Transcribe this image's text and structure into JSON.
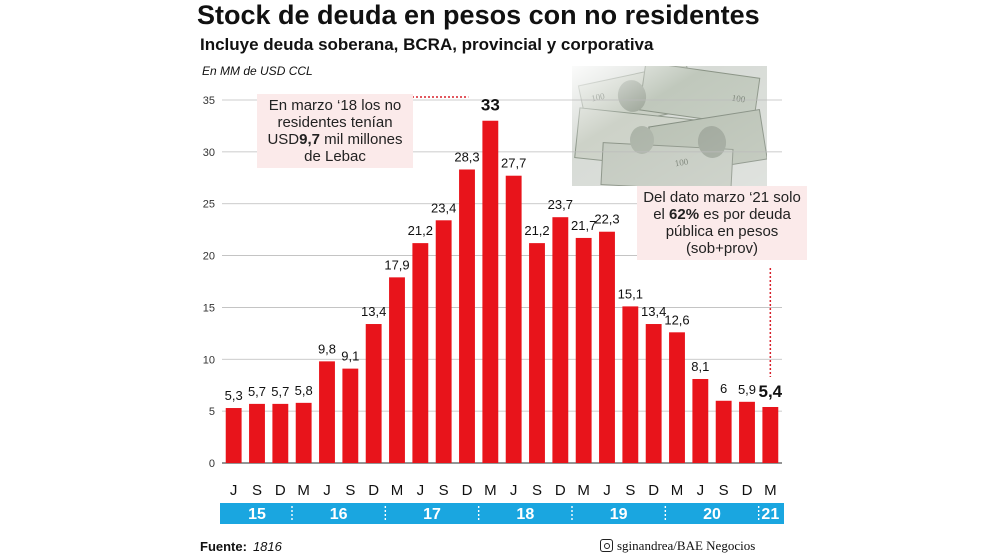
{
  "chart_data": {
    "type": "bar",
    "title": "Stock de deuda en pesos con no residentes",
    "subtitle": "Incluye deuda soberana, BCRA, provincial y corporativa",
    "ylabel": "En MM de USD CCL",
    "ylim": [
      0,
      35
    ],
    "yticks": [
      0,
      5,
      10,
      15,
      20,
      25,
      30,
      35
    ],
    "grid": true,
    "categories": [
      "J",
      "S",
      "D",
      "M",
      "J",
      "S",
      "D",
      "M",
      "J",
      "S",
      "D",
      "M",
      "J",
      "S",
      "D",
      "M",
      "J",
      "S",
      "D",
      "M",
      "J",
      "S",
      "D",
      "M"
    ],
    "values": [
      5.3,
      5.7,
      5.7,
      5.8,
      9.8,
      9.1,
      13.4,
      17.9,
      21.2,
      23.4,
      28.3,
      33,
      27.7,
      21.2,
      23.7,
      21.7,
      22.3,
      15.1,
      13.4,
      12.6,
      8.1,
      6,
      5.9,
      5.4
    ],
    "data_labels": [
      "5,3",
      "5,7",
      "5,7",
      "5,8",
      "9,8",
      "9,1",
      "13,4",
      "17,9",
      "21,2",
      "23,4",
      "28,3",
      "33",
      "27,7",
      "21,2",
      "23,7",
      "21,7",
      "22,3",
      "15,1",
      "13,4",
      "12,6",
      "8,1",
      "6",
      "5,9",
      "5,4"
    ],
    "years": [
      {
        "label": "15",
        "start": 0,
        "end": 2
      },
      {
        "label": "16",
        "start": 3,
        "end": 6
      },
      {
        "label": "17",
        "start": 7,
        "end": 10
      },
      {
        "label": "18",
        "start": 11,
        "end": 14
      },
      {
        "label": "19",
        "start": 15,
        "end": 18
      },
      {
        "label": "20",
        "start": 19,
        "end": 22
      },
      {
        "label": "21",
        "start": 23,
        "end": 23
      }
    ],
    "colors": {
      "bar": "#e8141b",
      "year_band": "#1aa6e0",
      "grid": "#bbbbbb",
      "annotation_line": "#d9202a"
    },
    "annotations": {
      "note1": {
        "text_1": "En marzo ‘18 los no residentes tenían USD",
        "bold": "9,7",
        "text_2": " mil millones de Lebac"
      },
      "note2": {
        "text_1": "Del dato marzo ‘21 solo el ",
        "bold": "62%",
        "text_2": " es por deuda pública en pesos (sob+prov)"
      }
    }
  },
  "footer": {
    "source_label": "Fuente:",
    "source_value": "1816",
    "credit": "sginandrea/BAE Negocios",
    "credit_icon": "instagram-icon"
  },
  "image": {
    "name": "money-photo"
  }
}
